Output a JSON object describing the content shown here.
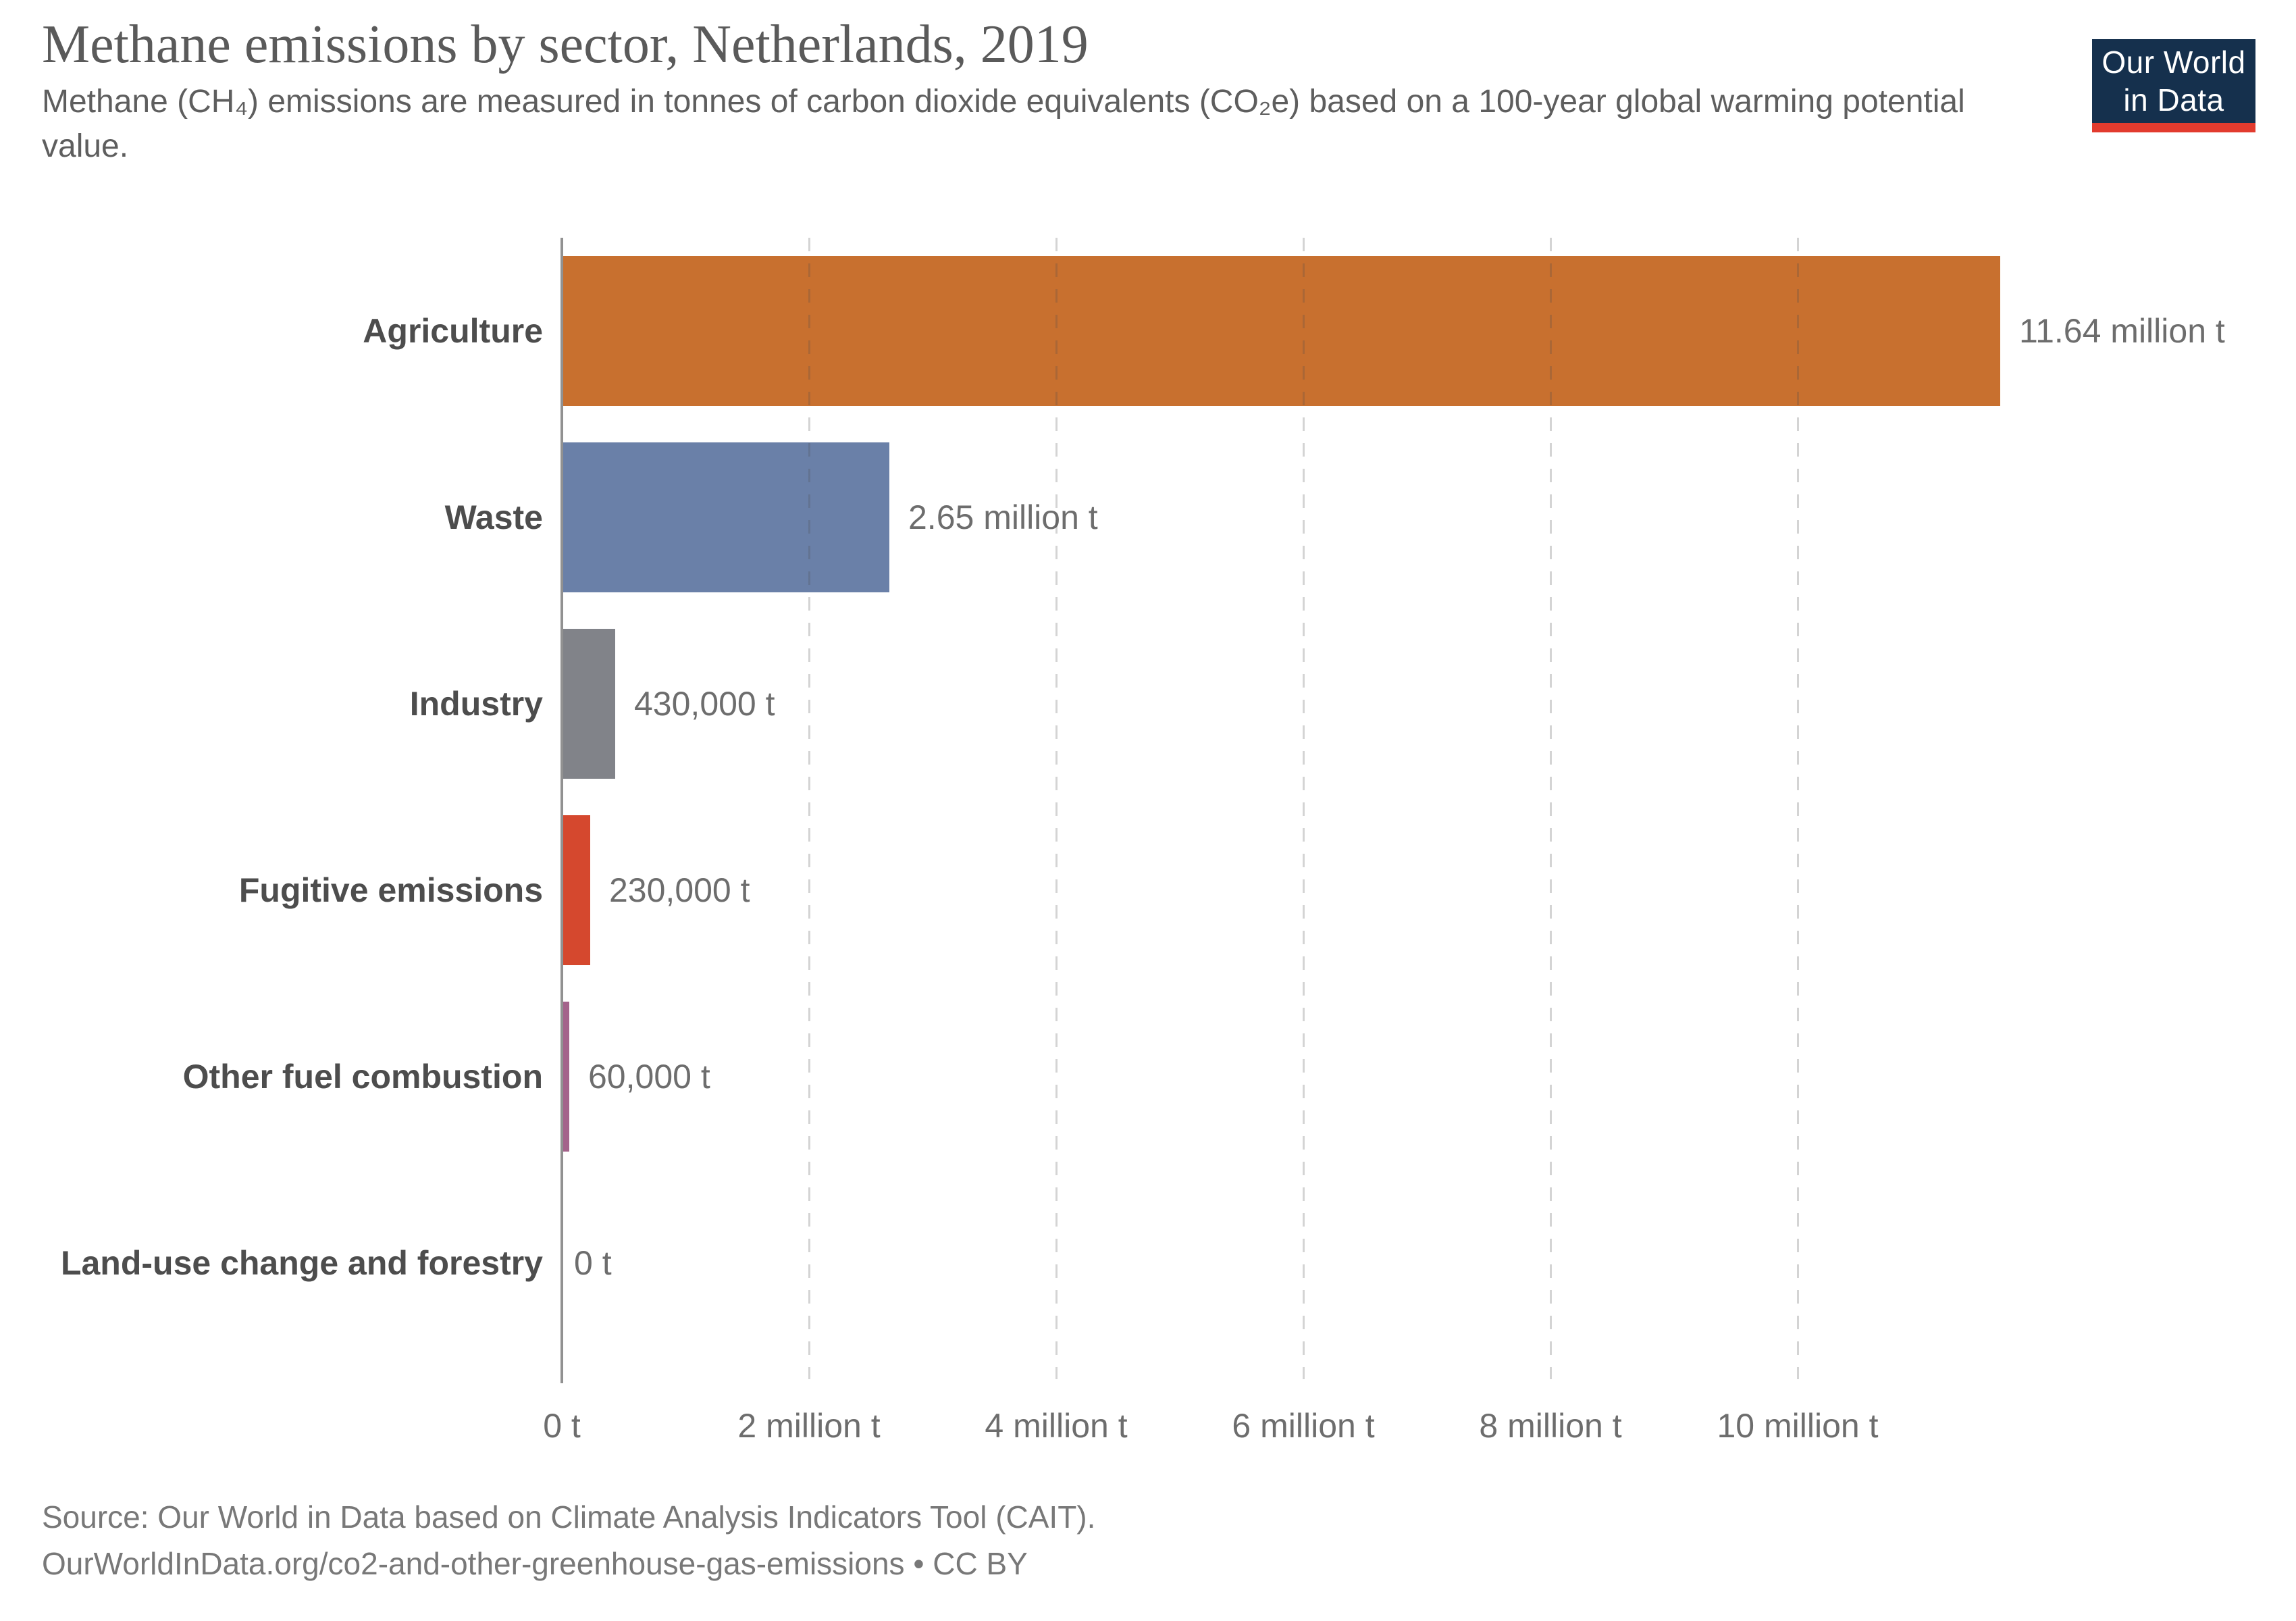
{
  "header": {
    "title": "Methane emissions by sector, Netherlands, 2019",
    "subtitle": "Methane (CH₄) emissions are measured in tonnes of carbon dioxide equivalents (CO₂e) based on a 100-year global warming potential value."
  },
  "logo": {
    "line1": "Our World",
    "line2": "in Data",
    "background_color": "#15304D",
    "stripe_color": "#E23B2E"
  },
  "chart_data": {
    "type": "bar",
    "orientation": "horizontal",
    "title": "Methane emissions by sector, Netherlands, 2019",
    "unit": "tonnes of CO₂ equivalents (t)",
    "categories": [
      "Agriculture",
      "Waste",
      "Industry",
      "Fugitive emissions",
      "Other fuel combustion",
      "Land-use change and forestry"
    ],
    "values_million_t": [
      11.64,
      2.65,
      0.43,
      0.23,
      0.06,
      0
    ],
    "values_tonnes": [
      11640000,
      2650000,
      430000,
      230000,
      60000,
      0
    ],
    "value_labels": [
      "11.64 million t",
      "2.65 million t",
      "430,000 t",
      "230,000 t",
      "60,000 t",
      "0 t"
    ],
    "bar_colors": [
      "#C8702F",
      "#6A80A8",
      "#818389",
      "#D5482E",
      "#A4638B",
      null
    ],
    "x_axis": {
      "ticks_million_t": [
        0,
        2,
        4,
        6,
        8,
        10
      ],
      "tick_labels": [
        "0 t",
        "2 million t",
        "4 million t",
        "6 million t",
        "8 million t",
        "10 million t"
      ],
      "xlim_million_t": [
        0,
        14
      ],
      "grid": "dashed-vertical"
    },
    "legend": "none",
    "axis_color": "#919191",
    "label_color": "#4d4d4d",
    "value_color": "#6d6d6d"
  },
  "footer": {
    "source_line1": "Source: Our World in Data based on Climate Analysis Indicators Tool (CAIT).",
    "source_line2": "OurWorldInData.org/co2-and-other-greenhouse-gas-emissions • CC BY"
  }
}
